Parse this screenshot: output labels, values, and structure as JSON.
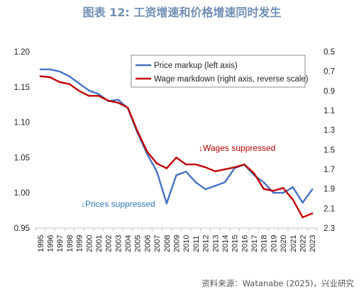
{
  "figure": {
    "title": "图表 12: 工资增速和价格增速同时发生",
    "source": "资料来源：Watanabe (2025)，兴业研究"
  },
  "chart_data": {
    "type": "line",
    "title": "",
    "x": [
      "1995",
      "1996",
      "1997",
      "1998",
      "1999",
      "2000",
      "2001",
      "2002",
      "2003",
      "2004",
      "2005",
      "2006",
      "2007",
      "2008",
      "2009",
      "2010",
      "2011",
      "2012",
      "2013",
      "2014",
      "2015",
      "2016",
      "2017",
      "2018",
      "2019",
      "2020",
      "2021",
      "2022",
      "2023"
    ],
    "left_axis": {
      "ylim": [
        0.95,
        1.2
      ],
      "ticks": [
        "0.95",
        "1.00",
        "1.05",
        "1.10",
        "1.15",
        "1.20"
      ]
    },
    "right_axis": {
      "ylim": [
        0.5,
        2.3
      ],
      "reverse": true,
      "ticks": [
        "0.5",
        "0.7",
        "0.9",
        "1.1",
        "1.3",
        "1.5",
        "1.7",
        "1.9",
        "2.1",
        "2.3"
      ]
    },
    "grid": false,
    "legend_position": "top-right",
    "series": [
      {
        "name": "Price markup (left axis)",
        "axis": "left",
        "color": "#4472c4",
        "values": [
          1.175,
          1.175,
          1.172,
          1.165,
          1.155,
          1.145,
          1.14,
          1.13,
          1.132,
          1.12,
          1.085,
          1.055,
          1.03,
          0.985,
          1.025,
          1.03,
          1.015,
          1.005,
          1.01,
          1.015,
          1.035,
          1.04,
          1.025,
          1.015,
          1.0,
          1.0,
          1.008,
          0.986,
          1.005
        ]
      },
      {
        "name": "Wage markdown (right axis, reverse scale)",
        "axis": "right",
        "color": "#c00000",
        "values": [
          0.75,
          0.76,
          0.81,
          0.83,
          0.9,
          0.95,
          0.95,
          1.0,
          1.02,
          1.07,
          1.31,
          1.52,
          1.64,
          1.69,
          1.58,
          1.65,
          1.65,
          1.68,
          1.72,
          1.7,
          1.68,
          1.65,
          1.74,
          1.9,
          1.92,
          1.89,
          2.01,
          2.19,
          2.15
        ]
      }
    ],
    "annotations": [
      {
        "text": "↓Wages suppressed",
        "color": "#c00000"
      },
      {
        "text": "↓Prices suppressed",
        "color": "#2e75b6"
      }
    ]
  }
}
